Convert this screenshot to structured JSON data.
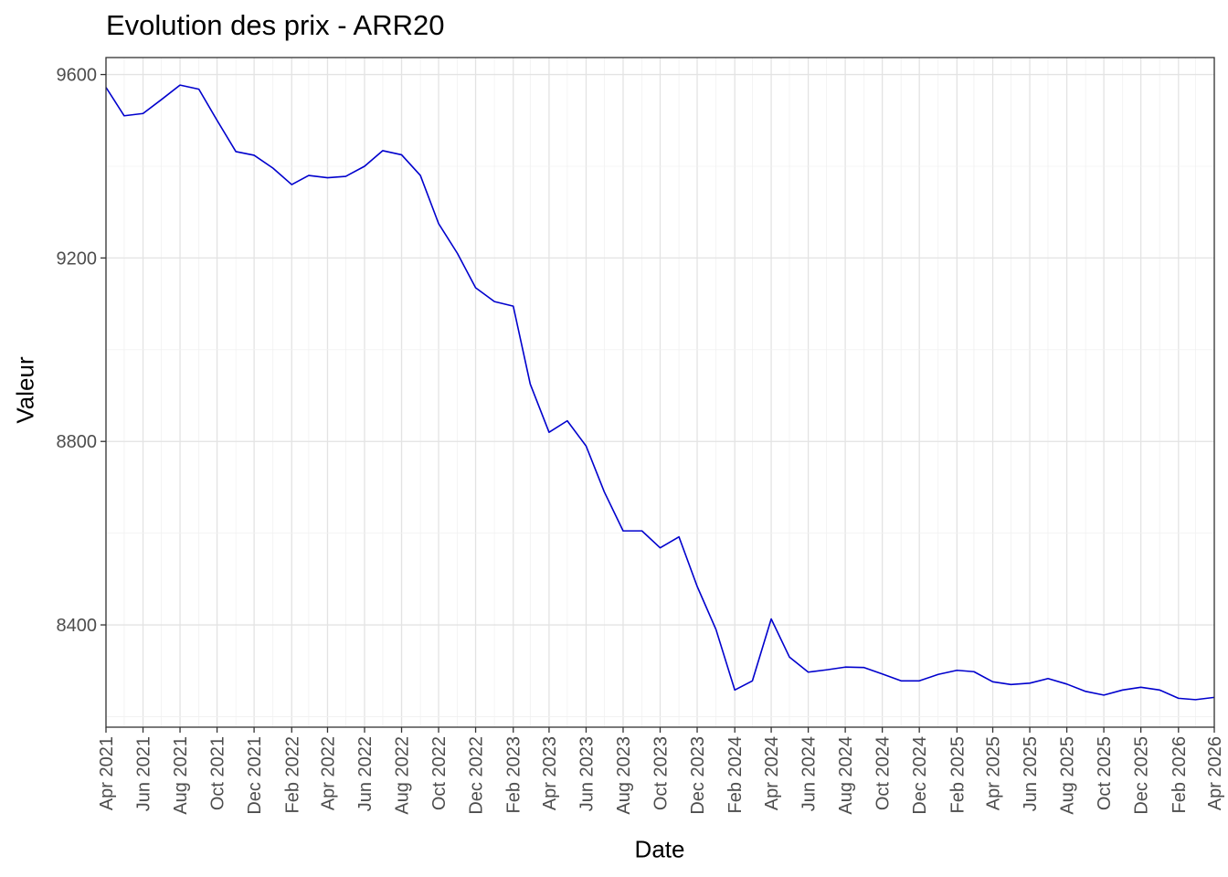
{
  "chart_data": {
    "type": "line",
    "title": "Evolution des prix - ARR20",
    "xlabel": "Date",
    "ylabel": "Valeur",
    "ylim": [
      8177,
      9637
    ],
    "y_ticks": [
      8400,
      8800,
      9200,
      9600
    ],
    "x_tick_labels": [
      "Apr 2021",
      "Jun 2021",
      "Aug 2021",
      "Oct 2021",
      "Dec 2021",
      "Feb 2022",
      "Apr 2022",
      "Jun 2022",
      "Aug 2022",
      "Oct 2022",
      "Dec 2022",
      "Feb 2023",
      "Apr 2023",
      "Jun 2023",
      "Aug 2023",
      "Oct 2023",
      "Dec 2023",
      "Feb 2024",
      "Apr 2024",
      "Jun 2024",
      "Aug 2024",
      "Oct 2024",
      "Dec 2024",
      "Feb 2025",
      "Apr 2025",
      "Jun 2025",
      "Aug 2025",
      "Oct 2025",
      "Dec 2025",
      "Feb 2026",
      "Apr 2026"
    ],
    "x_range": [
      "2021-04-01",
      "2026-04-01"
    ],
    "grid": true,
    "line_color": "#0000CD",
    "series": [
      {
        "dates": [
          "2021-04-01",
          "2021-05-01",
          "2021-06-01",
          "2021-07-01",
          "2021-08-01",
          "2021-09-01",
          "2021-10-01",
          "2021-11-01",
          "2021-12-01",
          "2022-01-01",
          "2022-02-01",
          "2022-03-01",
          "2022-04-01",
          "2022-05-01",
          "2022-06-01",
          "2022-07-01",
          "2022-08-01",
          "2022-09-01",
          "2022-10-01",
          "2022-11-01",
          "2022-12-01",
          "2023-01-01",
          "2023-02-01",
          "2023-03-01",
          "2023-04-01",
          "2023-05-01",
          "2023-06-01",
          "2023-07-01",
          "2023-08-01",
          "2023-09-01",
          "2023-10-01",
          "2023-11-01",
          "2023-12-01",
          "2024-01-01",
          "2024-02-01",
          "2024-03-01",
          "2024-04-01",
          "2024-05-01",
          "2024-06-01",
          "2024-07-01",
          "2024-08-01",
          "2024-09-01",
          "2024-10-01",
          "2024-11-01",
          "2024-12-01",
          "2025-01-01",
          "2025-02-01",
          "2025-03-01",
          "2025-04-01",
          "2025-05-01",
          "2025-06-01",
          "2025-07-01",
          "2025-08-01",
          "2025-09-01",
          "2025-10-01",
          "2025-11-01",
          "2025-12-01",
          "2026-01-01",
          "2026-02-01",
          "2026-03-01",
          "2026-04-01"
        ],
        "values": [
          9572,
          9510,
          9515,
          9545,
          9577,
          9568,
          9500,
          9432,
          9424,
          9396,
          9360,
          9380,
          9375,
          9378,
          9400,
          9434,
          9425,
          9380,
          9275,
          9210,
          9135,
          9105,
          9095,
          8925,
          8820,
          8845,
          8790,
          8690,
          8605,
          8605,
          8568,
          8592,
          8484,
          8390,
          8258,
          8278,
          8413,
          8330,
          8297,
          8302,
          8308,
          8307,
          8293,
          8278,
          8278,
          8292,
          8301,
          8298,
          8276,
          8270,
          8273,
          8283,
          8271,
          8255,
          8247,
          8258,
          8264,
          8258,
          8240,
          8237,
          8242
        ]
      }
    ]
  }
}
